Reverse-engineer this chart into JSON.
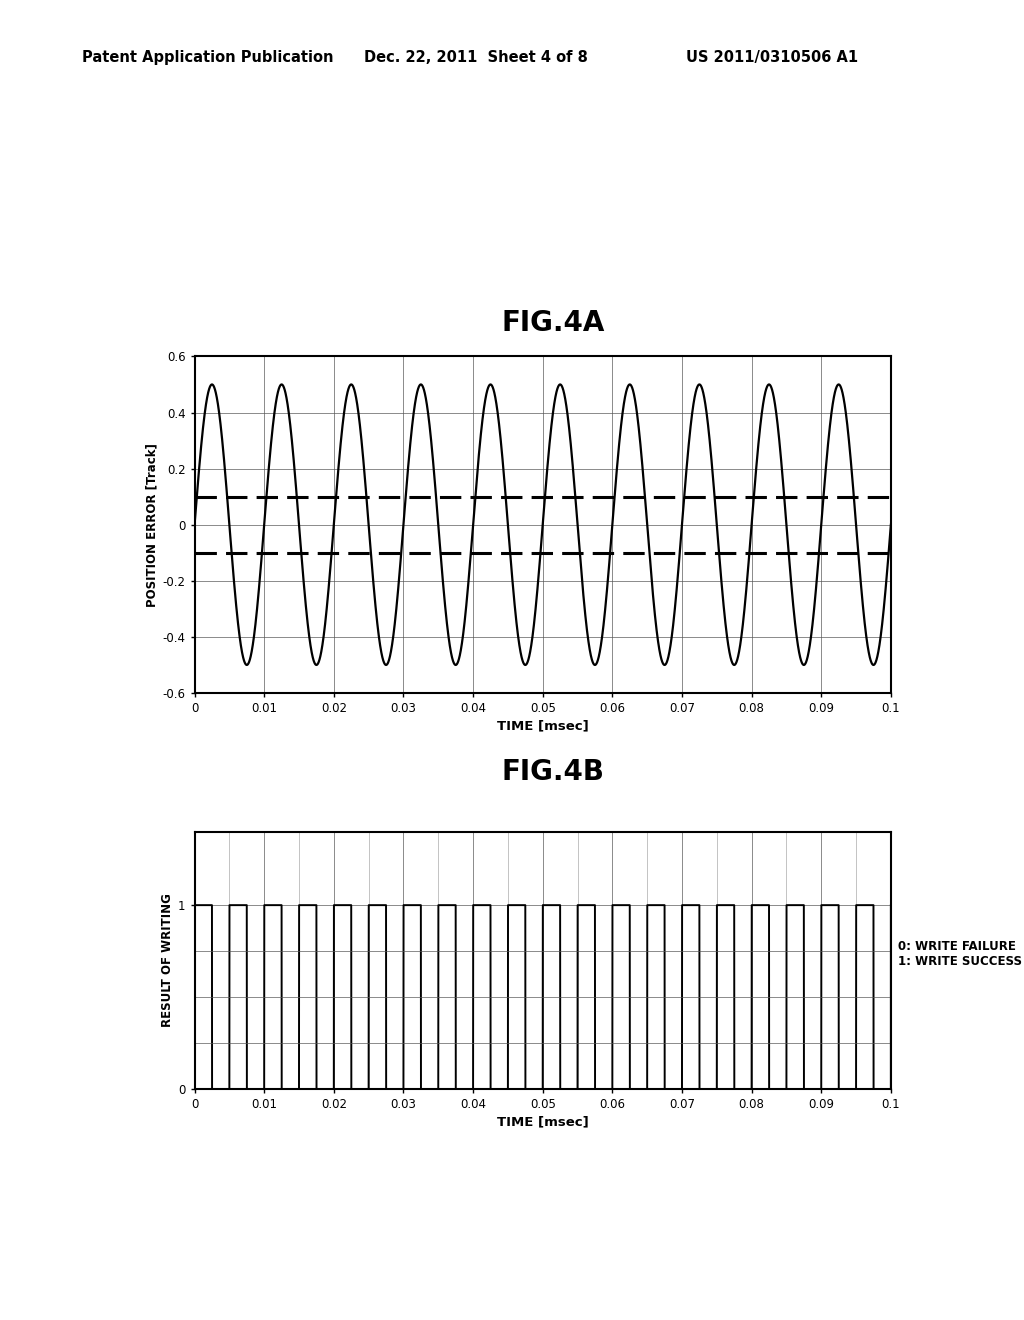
{
  "header_left": "Patent Application Publication",
  "header_mid": "Dec. 22, 2011  Sheet 4 of 8",
  "header_right": "US 2011/0310506 A1",
  "fig4a_title": "FIG.4A",
  "fig4b_title": "FIG.4B",
  "fig4a_ylabel": "POSITION ERROR [Track]",
  "fig4a_xlabel": "TIME [msec]",
  "fig4b_ylabel": "RESULT OF WRITING",
  "fig4b_xlabel": "TIME [msec]",
  "fig4a_ylim": [
    -0.6,
    0.6
  ],
  "fig4a_yticks": [
    -0.6,
    -0.4,
    -0.2,
    0,
    0.2,
    0.4,
    0.6
  ],
  "fig4a_ytick_labels": [
    "-0.6",
    "-0.4",
    "-0.2",
    "0",
    "0.2",
    "0.4",
    "0.6"
  ],
  "fig4a_xlim": [
    0,
    0.1
  ],
  "fig4a_xticks": [
    0,
    0.01,
    0.02,
    0.03,
    0.04,
    0.05,
    0.06,
    0.07,
    0.08,
    0.09,
    0.1
  ],
  "fig4a_xtick_labels": [
    "0",
    "0.01",
    "0.02",
    "0.03",
    "0.04",
    "0.05",
    "0.06",
    "0.07",
    "0.08",
    "0.09",
    "0.1"
  ],
  "fig4a_amplitude": 0.5,
  "fig4a_frequency": 100,
  "fig4a_dashed_level": 0.1,
  "fig4b_ylim": [
    0,
    1.4
  ],
  "fig4b_yticks": [
    0,
    1
  ],
  "fig4b_ytick_labels": [
    "0",
    "1"
  ],
  "fig4b_xlim": [
    0,
    0.1
  ],
  "fig4b_xticks": [
    0,
    0.01,
    0.02,
    0.03,
    0.04,
    0.05,
    0.06,
    0.07,
    0.08,
    0.09,
    0.1
  ],
  "fig4b_xtick_labels": [
    "0",
    "0.01",
    "0.02",
    "0.03",
    "0.04",
    "0.05",
    "0.06",
    "0.07",
    "0.08",
    "0.09",
    "0.1"
  ],
  "fig4b_minor_xticks": [
    0.005,
    0.015,
    0.025,
    0.035,
    0.045,
    0.055,
    0.065,
    0.075,
    0.085,
    0.095
  ],
  "fig4b_signal_freq": 200,
  "legend_text": "0: WRITE FAILURE\n1: WRITE SUCCESS",
  "bg_color": "#ffffff",
  "line_color": "#000000",
  "dashed_color": "#000000",
  "grid_color": "#555555",
  "minor_grid_color": "#888888"
}
